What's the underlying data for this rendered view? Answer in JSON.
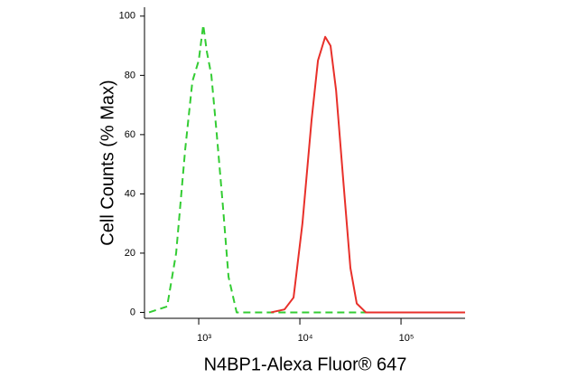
{
  "chart_data": {
    "type": "line",
    "xlabel": "N4BP1-Alexa Fluor® 647",
    "ylabel": "Cell Counts (% Max)",
    "xscale": "log",
    "xlim": [
      291,
      430000
    ],
    "xticks": [
      {
        "value": 1000,
        "label": "10³"
      },
      {
        "value": 10000,
        "label": "10⁴"
      },
      {
        "value": 100000,
        "label": "10⁵"
      }
    ],
    "ylim": [
      -2,
      103
    ],
    "yticks": [
      0,
      20,
      40,
      60,
      80,
      100
    ],
    "series": [
      {
        "color": "#33cc33",
        "dashed": true,
        "x": [
          323,
          487,
          598,
          735,
          866,
          1000,
          1109,
          1203,
          1334,
          1509,
          1743,
          1971,
          2371,
          5000,
          400000
        ],
        "values": [
          0,
          2,
          20,
          55,
          78,
          85,
          97,
          88,
          80,
          60,
          35,
          12,
          0,
          0,
          0
        ]
      },
      {
        "color": "#e8302a",
        "dashed": false,
        "x": [
          5180,
          7050,
          8660,
          10600,
          13060,
          15100,
          17800,
          20100,
          22800,
          26800,
          31600,
          36500,
          44900,
          430000
        ],
        "values": [
          0,
          1,
          5,
          30,
          65,
          85,
          93,
          90,
          75,
          45,
          15,
          3,
          0,
          0
        ]
      }
    ]
  }
}
